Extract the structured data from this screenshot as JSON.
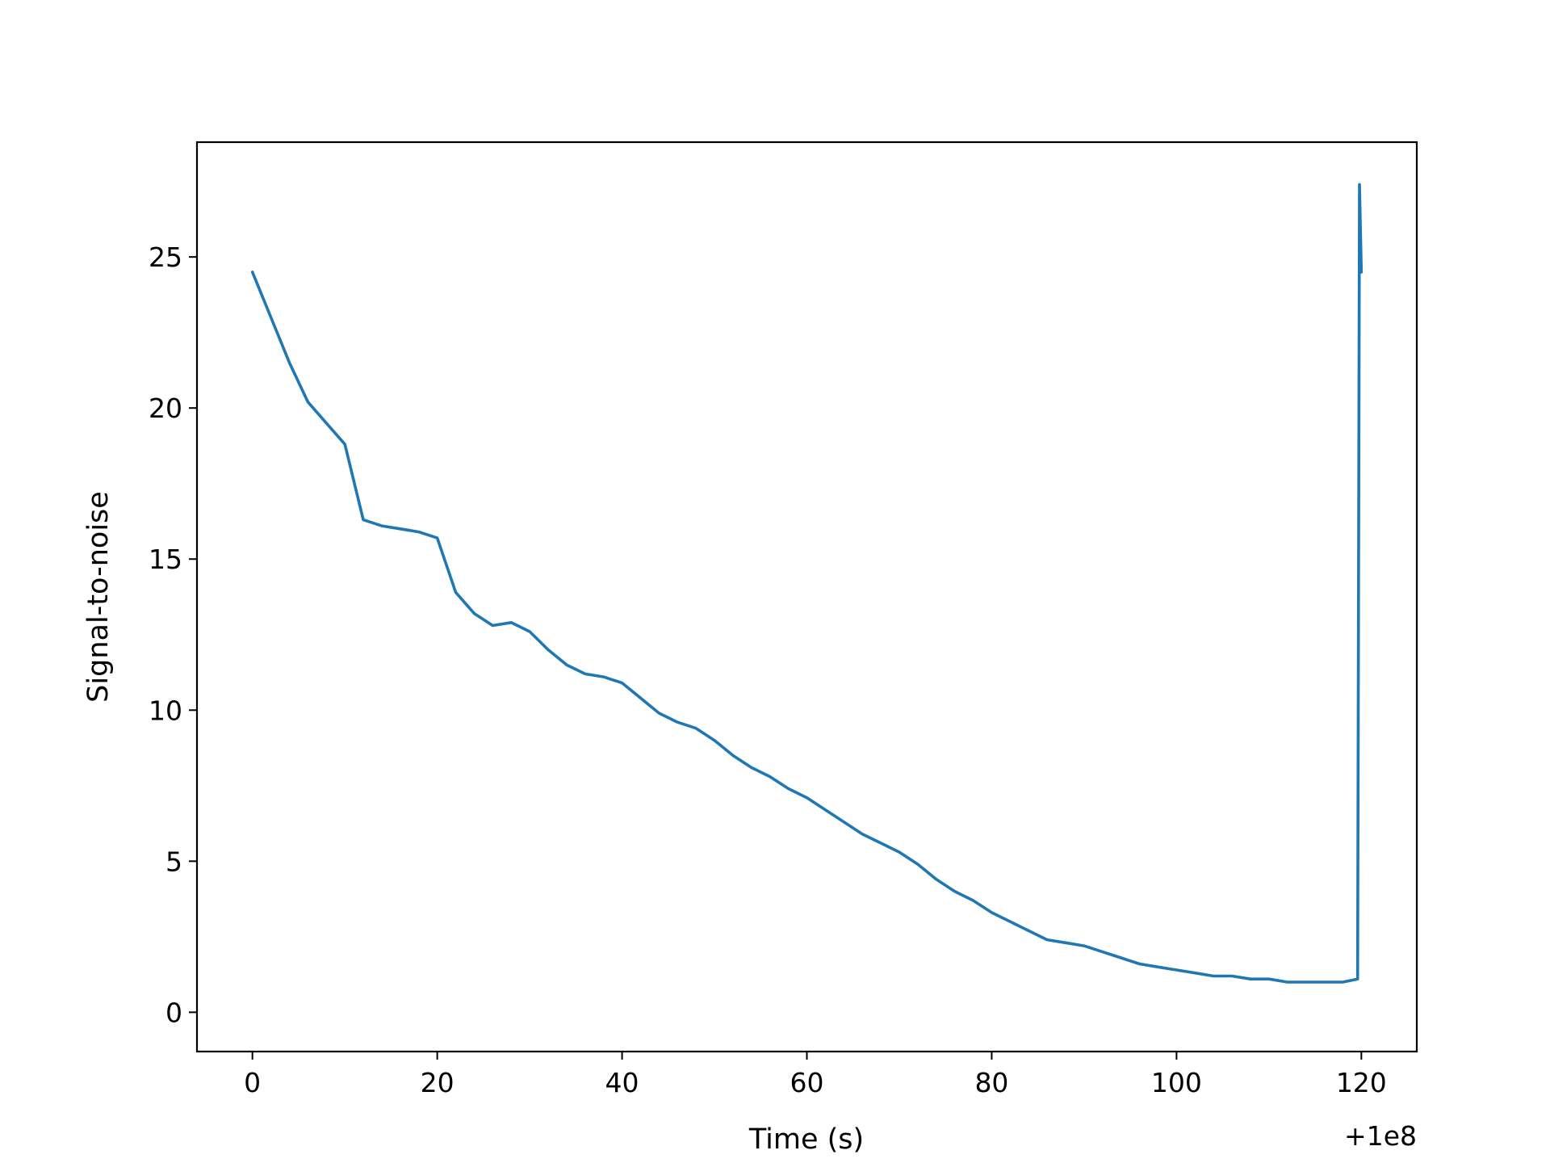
{
  "chart_data": {
    "type": "line",
    "title": "",
    "xlabel": "Time (s)",
    "ylabel": "Signal-to-noise",
    "x_offset_label": "+1e8",
    "xlim": [
      -6,
      126
    ],
    "ylim": [
      -1.3,
      28.8
    ],
    "xticks": [
      0,
      20,
      40,
      60,
      80,
      100,
      120
    ],
    "yticks": [
      0,
      5,
      10,
      15,
      20,
      25
    ],
    "grid": false,
    "legend": "none",
    "colors": {
      "series": "#1f77b4",
      "axes": "#000000",
      "background": "#ffffff"
    },
    "series": [
      {
        "x": [
          0,
          2,
          4,
          6,
          8,
          10,
          12,
          14,
          16,
          18,
          20,
          22,
          24,
          26,
          28,
          30,
          32,
          34,
          36,
          38,
          40,
          42,
          44,
          46,
          48,
          50,
          52,
          54,
          56,
          58,
          60,
          62,
          64,
          66,
          68,
          70,
          72,
          74,
          76,
          78,
          80,
          82,
          84,
          86,
          88,
          90,
          92,
          94,
          96,
          98,
          100,
          102,
          104,
          106,
          108,
          110,
          112,
          114,
          116,
          118,
          119.6,
          119.8,
          120
        ],
        "y": [
          24.5,
          23.0,
          21.5,
          20.2,
          19.5,
          18.8,
          16.3,
          16.1,
          16.0,
          15.9,
          15.7,
          13.9,
          13.2,
          12.8,
          12.9,
          12.6,
          12.0,
          11.5,
          11.2,
          11.1,
          10.9,
          10.4,
          9.9,
          9.6,
          9.4,
          9.0,
          8.5,
          8.1,
          7.8,
          7.4,
          7.1,
          6.7,
          6.3,
          5.9,
          5.6,
          5.3,
          4.9,
          4.4,
          4.0,
          3.7,
          3.3,
          3.0,
          2.7,
          2.4,
          2.3,
          2.2,
          2.0,
          1.8,
          1.6,
          1.5,
          1.4,
          1.3,
          1.2,
          1.2,
          1.1,
          1.1,
          1.0,
          1.0,
          1.0,
          1.0,
          1.1,
          27.4,
          24.5
        ]
      }
    ]
  }
}
